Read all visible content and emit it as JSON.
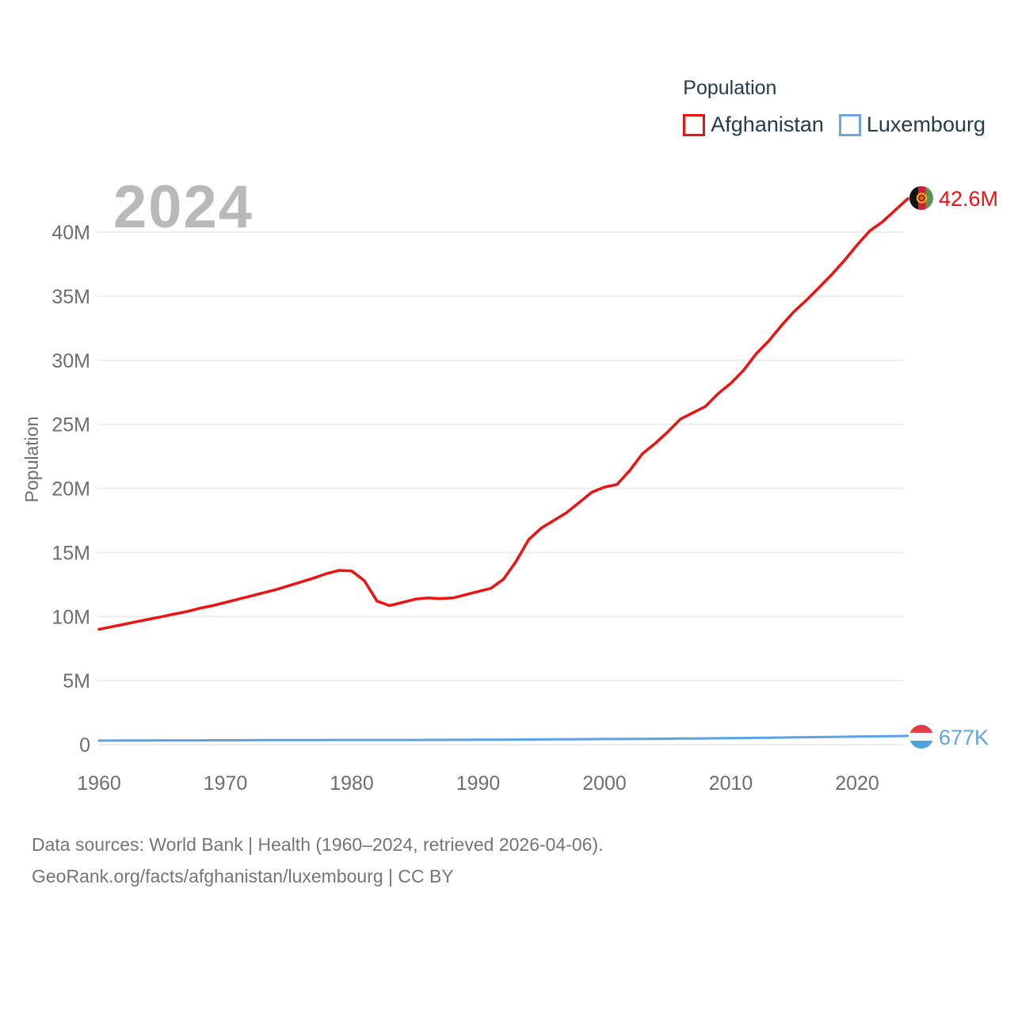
{
  "page": {
    "background": "#ffffff"
  },
  "legend": {
    "title": "Population",
    "items": [
      {
        "label": "Afghanistan",
        "color": "#ec1313"
      },
      {
        "label": "Luxembourg",
        "color": "#6ba7e5"
      }
    ]
  },
  "watermark": "2024",
  "chart_data": {
    "type": "line",
    "title": "Population",
    "xlabel": "",
    "ylabel": "Population",
    "x_range": [
      1960,
      2024
    ],
    "ylim_millions": [
      0,
      43
    ],
    "grid": true,
    "legend_position": "top-right",
    "x_ticks": [
      1960,
      1970,
      1980,
      1990,
      2000,
      2010,
      2020
    ],
    "y_ticks": [
      {
        "label": "0",
        "value": 0
      },
      {
        "label": "5M",
        "value": 5
      },
      {
        "label": "10M",
        "value": 10
      },
      {
        "label": "15M",
        "value": 15
      },
      {
        "label": "20M",
        "value": 20
      },
      {
        "label": "25M",
        "value": 25
      },
      {
        "label": "30M",
        "value": 30
      },
      {
        "label": "35M",
        "value": 35
      },
      {
        "label": "40M",
        "value": 40
      }
    ],
    "categories": [
      1960,
      1961,
      1962,
      1963,
      1964,
      1965,
      1966,
      1967,
      1968,
      1969,
      1970,
      1971,
      1972,
      1973,
      1974,
      1975,
      1976,
      1977,
      1978,
      1979,
      1980,
      1981,
      1982,
      1983,
      1984,
      1985,
      1986,
      1987,
      1988,
      1989,
      1990,
      1991,
      1992,
      1993,
      1994,
      1995,
      1996,
      1997,
      1998,
      1999,
      2000,
      2001,
      2002,
      2003,
      2004,
      2005,
      2006,
      2007,
      2008,
      2009,
      2010,
      2011,
      2012,
      2013,
      2014,
      2015,
      2016,
      2017,
      2018,
      2019,
      2020,
      2021,
      2022,
      2023,
      2024
    ],
    "series": [
      {
        "name": "Afghanistan",
        "color": "#ec1313",
        "end_label": "42.6M",
        "end_value_millions": 42.6,
        "values_millions": [
          9.0,
          9.2,
          9.4,
          9.6,
          9.8,
          10.0,
          10.2,
          10.4,
          10.65,
          10.85,
          11.1,
          11.35,
          11.6,
          11.85,
          12.1,
          12.4,
          12.7,
          13.0,
          13.35,
          13.6,
          13.55,
          12.8,
          11.2,
          10.85,
          11.1,
          11.35,
          11.45,
          11.4,
          11.45,
          11.7,
          11.95,
          12.2,
          12.9,
          14.3,
          16.0,
          16.9,
          17.5,
          18.1,
          18.9,
          19.7,
          20.1,
          20.3,
          21.4,
          22.7,
          23.5,
          24.4,
          25.4,
          25.9,
          26.4,
          27.4,
          28.2,
          29.2,
          30.5,
          31.5,
          32.7,
          33.8,
          34.7,
          35.7,
          36.7,
          37.8,
          39.0,
          40.1,
          40.8,
          41.7,
          42.6
        ]
      },
      {
        "name": "Luxembourg",
        "color": "#5ba3e6",
        "end_label": "677K",
        "end_value_millions": 0.677,
        "values_millions": [
          0.314,
          0.317,
          0.321,
          0.324,
          0.328,
          0.331,
          0.333,
          0.335,
          0.336,
          0.338,
          0.339,
          0.342,
          0.346,
          0.35,
          0.355,
          0.359,
          0.361,
          0.361,
          0.362,
          0.363,
          0.364,
          0.365,
          0.366,
          0.366,
          0.366,
          0.367,
          0.369,
          0.372,
          0.375,
          0.378,
          0.382,
          0.387,
          0.392,
          0.398,
          0.402,
          0.406,
          0.412,
          0.418,
          0.424,
          0.43,
          0.436,
          0.442,
          0.446,
          0.452,
          0.458,
          0.466,
          0.473,
          0.48,
          0.489,
          0.498,
          0.507,
          0.518,
          0.531,
          0.543,
          0.556,
          0.569,
          0.582,
          0.596,
          0.608,
          0.62,
          0.63,
          0.64,
          0.653,
          0.668,
          0.677
        ]
      }
    ]
  },
  "colors": {
    "gridline": "#ededed",
    "tick_text": "#6e6e6e",
    "legend_text": "#263b52",
    "watermark": "#b9b9b9",
    "footer_text": "#757575"
  },
  "footer": {
    "line1": "Data sources: World Bank | Health (1960–2024, retrieved 2026-04-06).",
    "line2": "GeoRank.org/facts/afghanistan/luxembourg | CC BY"
  }
}
